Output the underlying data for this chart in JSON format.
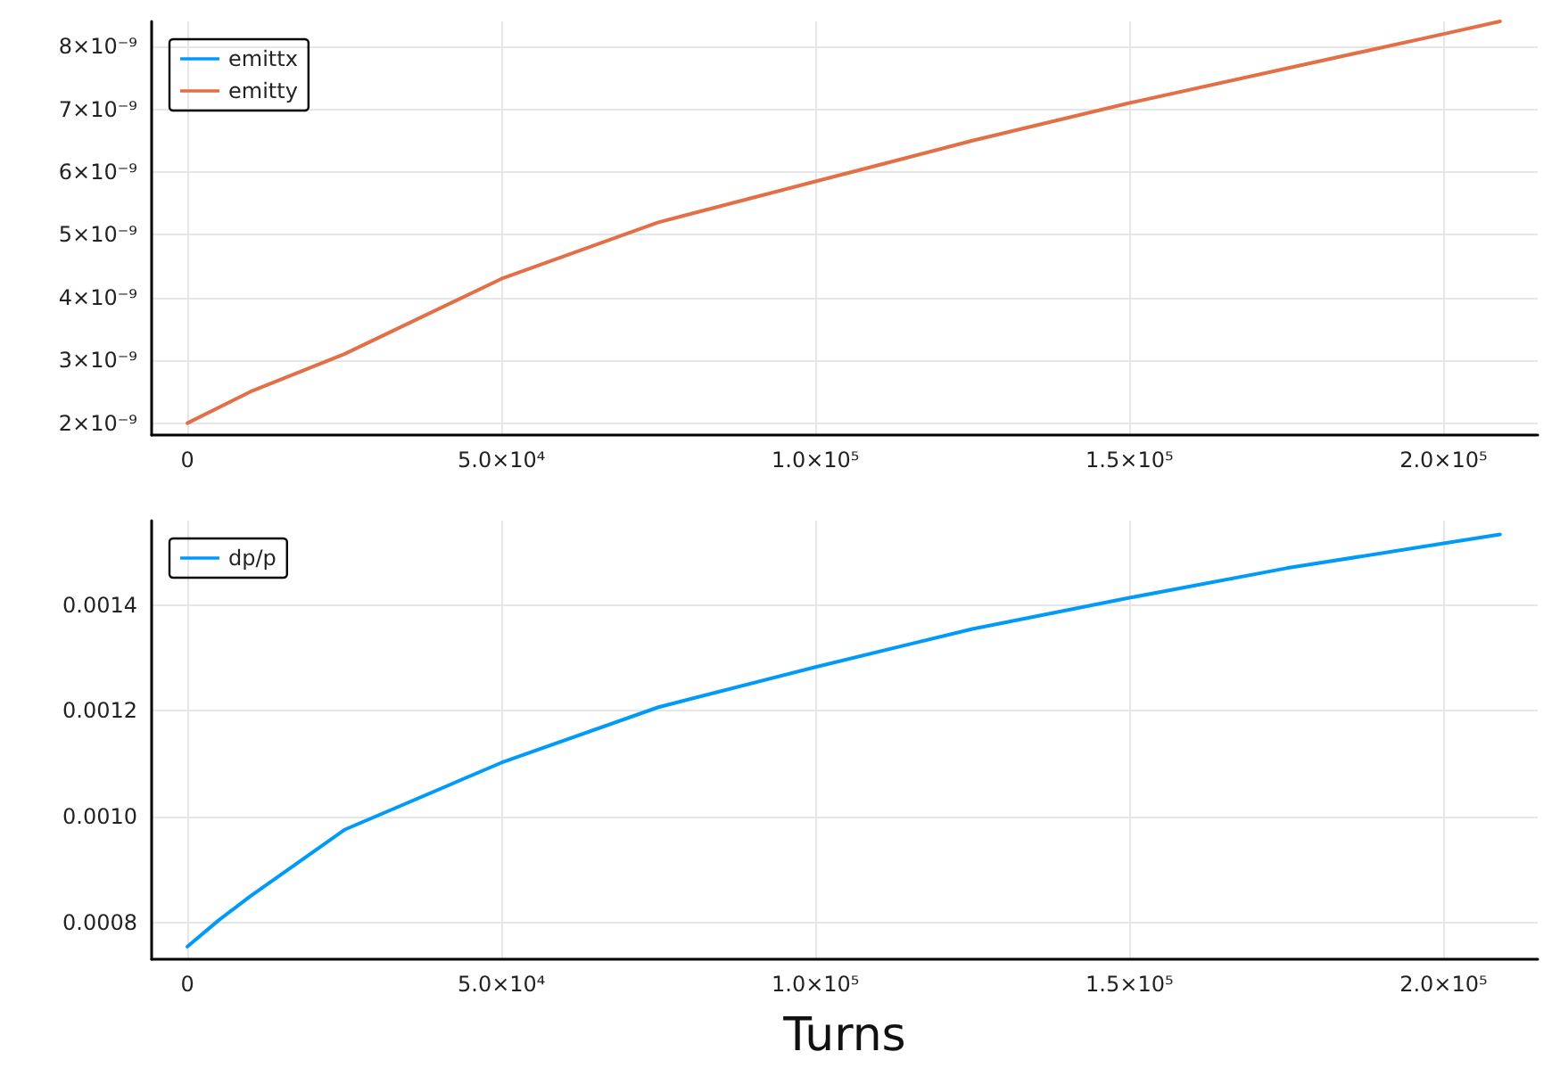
{
  "chart_data": [
    {
      "type": "line",
      "x": [
        0,
        10000,
        25000,
        50000,
        75000,
        100000,
        125000,
        150000,
        175000,
        200000,
        209000
      ],
      "series": [
        {
          "name": "emittx",
          "color": "#009af9",
          "values": [
            null,
            null,
            null,
            null,
            null,
            null,
            null,
            null,
            null,
            null,
            null
          ]
        },
        {
          "name": "emitty",
          "color": "#e26f46",
          "values": [
            2e-09,
            2.5e-09,
            3.1e-09,
            4.3e-09,
            5.2e-09,
            5.85e-09,
            6.5e-09,
            7.1e-09,
            7.65e-09,
            8.2e-09,
            8.4e-09
          ]
        }
      ],
      "xlim": [
        -5700,
        215000
      ],
      "ylim": [
        1.81e-09,
        8.4e-09
      ],
      "xticks": [
        0,
        {
          "value": 50000,
          "label": "5.0×10⁴"
        },
        {
          "value": 100000,
          "label": "1.0×10⁵"
        },
        {
          "value": 150000,
          "label": "1.5×10⁵"
        },
        {
          "value": 200000,
          "label": "2.0×10⁵"
        }
      ],
      "yticks": [
        {
          "value": 2e-09,
          "label": "2×10⁻⁹"
        },
        {
          "value": 3e-09,
          "label": "3×10⁻⁹"
        },
        {
          "value": 4e-09,
          "label": "4×10⁻⁹"
        },
        {
          "value": 5e-09,
          "label": "5×10⁻⁹"
        },
        {
          "value": 6e-09,
          "label": "6×10⁻⁹"
        },
        {
          "value": 7e-09,
          "label": "7×10⁻⁹"
        },
        {
          "value": 8e-09,
          "label": "8×10⁻⁹"
        }
      ],
      "grid": true,
      "legend": "top left",
      "marker": "none",
      "line_style": "solid"
    },
    {
      "type": "line",
      "x": [
        0,
        5000,
        10000,
        25000,
        50000,
        75000,
        100000,
        125000,
        150000,
        175000,
        200000,
        209000
      ],
      "series": [
        {
          "name": "dp/p",
          "color": "#009af9",
          "values": [
            0.000754,
            0.000804,
            0.000849,
            0.000975,
            0.001102,
            0.001207,
            0.001283,
            0.001355,
            0.001414,
            0.00147,
            0.001517,
            0.001534
          ]
        }
      ],
      "xlim": [
        -5700,
        215000
      ],
      "ylim": [
        0.00073,
        0.00156
      ],
      "xticks": [
        0,
        {
          "value": 50000,
          "label": "5.0×10⁴"
        },
        {
          "value": 100000,
          "label": "1.0×10⁵"
        },
        {
          "value": 150000,
          "label": "1.5×10⁵"
        },
        {
          "value": 200000,
          "label": "2.0×10⁵"
        }
      ],
      "yticks": [
        0.0008,
        {
          "value": 0.001,
          "label": "0.0010"
        },
        0.0012,
        0.0014
      ],
      "xlabel": "Turns",
      "grid": true,
      "legend": "top left",
      "marker": "none",
      "line_style": "solid"
    }
  ]
}
